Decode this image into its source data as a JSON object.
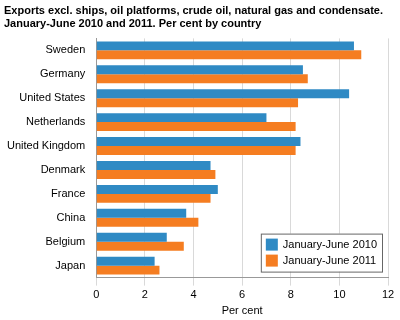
{
  "chart_data": {
    "type": "bar",
    "orientation": "horizontal",
    "title": "Exports excl. ships, oil platforms, crude oil, natural gas and condensate. January-June 2010 and 2011. Per cent by country",
    "x_label": "Per cent",
    "categories": [
      "Sweden",
      "Germany",
      "United States",
      "Netherlands",
      "United Kingdom",
      "Denmark",
      "France",
      "China",
      "Belgium",
      "Japan"
    ],
    "series": [
      {
        "name": "January-June 2010",
        "color": "#2f8ac4",
        "values": [
          10.6,
          8.5,
          10.4,
          7.0,
          8.4,
          4.7,
          5.0,
          3.7,
          2.9,
          2.4
        ]
      },
      {
        "name": "January-June 2011",
        "color": "#f57d21",
        "values": [
          10.9,
          8.7,
          8.3,
          8.2,
          8.2,
          4.9,
          4.7,
          4.2,
          3.6,
          2.6
        ]
      }
    ],
    "xlim": [
      0,
      12
    ],
    "xticks": [
      0,
      2,
      4,
      6,
      8,
      10,
      12
    ],
    "grid": true,
    "legend": "lower right"
  }
}
